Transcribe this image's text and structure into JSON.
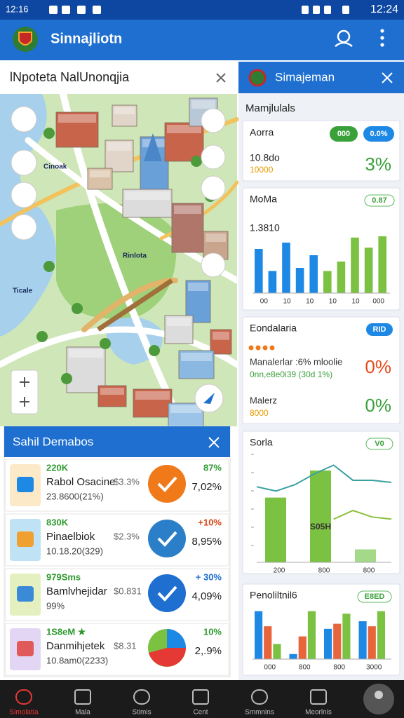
{
  "status_bar": {
    "left_time": "12:16",
    "right_time": "12:24"
  },
  "app_bar": {
    "title": "Sinnajliotn"
  },
  "search": {
    "text": "lNpoteta NalUnonqjia"
  },
  "map": {
    "labels": [
      "Cinoak",
      "Rinlota",
      "Ticale"
    ]
  },
  "list_card": {
    "title": "Sahil Demabos",
    "rows": [
      {
        "top": "220K",
        "name": "Rabol Osacine",
        "sub": "23.8600(21%)",
        "mid": "$3.3%",
        "pct_top": "87%",
        "pct": "7,02%"
      },
      {
        "top": "830K",
        "name": "Pinaelbiok",
        "sub": "10.18.20(329)",
        "mid": "$2.3%",
        "pct_top": "+10%",
        "pct": "8,95%"
      },
      {
        "top": "979Sms",
        "name": "Bamlvhejidar",
        "sub": "99%",
        "mid": "$0.831",
        "pct_top": "+ 30%",
        "pct": "4,09%"
      },
      {
        "top": "1S8eM ★",
        "name": "Danmihjetek",
        "sub": "10.8am0(2233)",
        "mid": "$8.31",
        "pct_top": "10%",
        "pct": "2,.9%"
      }
    ]
  },
  "side_panel": {
    "title": "Simajeman",
    "section": "Mamjlulals",
    "card1": {
      "title": "Aorra",
      "badges": [
        "000",
        "0.0%"
      ],
      "line1": "10.8do",
      "line2": "10000",
      "value": "3%"
    },
    "card2": {
      "title": "MoMa",
      "badge": "0.87",
      "value": "1.3810",
      "chart": {
        "type": "bar",
        "ylim": [
          0,
          100
        ],
        "values": [
          70,
          35,
          80,
          40,
          60,
          35,
          50,
          88,
          72,
          90
        ],
        "colors": [
          "#1e88e5",
          "#1e88e5",
          "#1e88e5",
          "#1e88e5",
          "#1e88e5",
          "#7cc242",
          "#7cc242",
          "#7cc242",
          "#7cc242",
          "#7cc242"
        ],
        "x_labels": [
          "00",
          "10",
          "10",
          "10",
          "10",
          "000"
        ]
      }
    },
    "card3": {
      "title": "Eondalaria",
      "badge": "RID",
      "rows": [
        {
          "label": "Manalerlar :6% mloolie",
          "sub": "0nn,e8e0i39 (30d 1%)",
          "value": "0%"
        },
        {
          "label": "Malerz",
          "sub": "8000",
          "value": "0%"
        }
      ]
    },
    "card4": {
      "title": "Sorla",
      "badge": "V0",
      "chart": {
        "type": "bar-line",
        "ylim": [
          0,
          100
        ],
        "bars": [
          60,
          85,
          12
        ],
        "bar_colors": [
          "#7cc242",
          "#7cc242",
          "#a5d98a"
        ],
        "bar_label": "S05H",
        "lines": [
          {
            "color": "#3aa0a0",
            "values": [
              70,
              66,
              72,
              82,
              90,
              76,
              76,
              74
            ]
          },
          {
            "color": "#8bbf3a",
            "values": [
              null,
              null,
              null,
              null,
              40,
              48,
              42,
              40
            ]
          }
        ],
        "x_labels": [
          "200",
          "800",
          "800"
        ]
      }
    },
    "card5": {
      "title": "Penoliltnil6",
      "badge": "E8ED",
      "chart": {
        "type": "grouped-bar",
        "ylim": [
          0,
          100
        ],
        "series": [
          {
            "color": "#1e88e5",
            "values": [
              95,
              10,
              60,
              75
            ]
          },
          {
            "color": "#e8643a",
            "values": [
              65,
              45,
              70,
              65
            ]
          },
          {
            "color": "#7cc242",
            "values": [
              30,
              95,
              90,
              95
            ]
          }
        ],
        "x_labels": [
          "000",
          "800",
          "800",
          "3000"
        ]
      }
    }
  },
  "nav": [
    "Simolatia",
    "Mala",
    "Stimis",
    "Cent",
    "Smmnins",
    "Meorlnis"
  ]
}
